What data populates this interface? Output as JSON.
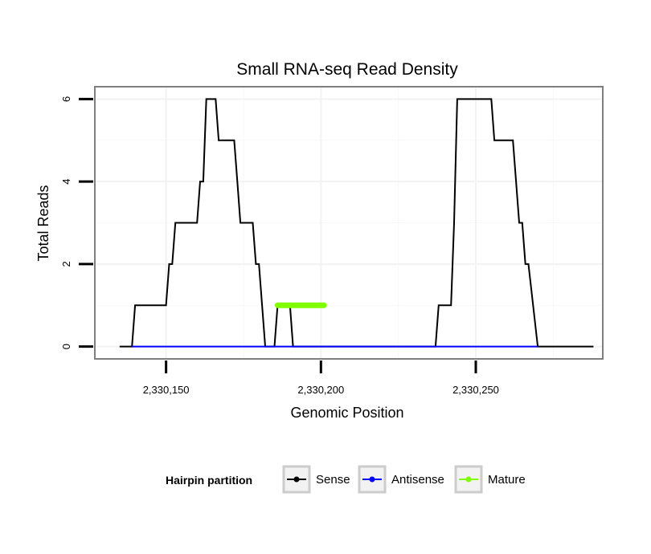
{
  "chart_data": {
    "type": "line",
    "title": "Small RNA-seq Read Density",
    "xlabel": "Genomic Position",
    "ylabel": "Total Reads",
    "xlim": [
      2330127,
      2330291
    ],
    "ylim": [
      -0.3,
      6.3
    ],
    "x_ticks": [
      {
        "value": 2330150,
        "label": "2,330,150"
      },
      {
        "value": 2330200,
        "label": "2,330,200"
      },
      {
        "value": 2330250,
        "label": "2,330,250"
      }
    ],
    "y_ticks": [
      {
        "value": 0,
        "label": "0"
      },
      {
        "value": 2,
        "label": "2"
      },
      {
        "value": 4,
        "label": "4"
      },
      {
        "value": 6,
        "label": "6"
      }
    ],
    "grid": true,
    "legend": {
      "title": "Hairpin partition",
      "position": "bottom",
      "entries": [
        {
          "name": "Sense",
          "color": "#000000"
        },
        {
          "name": "Antisense",
          "color": "#0000ff"
        },
        {
          "name": "Mature",
          "color": "#7fff00"
        }
      ]
    },
    "series": [
      {
        "name": "Sense",
        "color": "#000000",
        "x": [
          2330135,
          2330139,
          2330140,
          2330150,
          2330151,
          2330152,
          2330153,
          2330160,
          2330161,
          2330162,
          2330163,
          2330166,
          2330167,
          2330172,
          2330173,
          2330174,
          2330178,
          2330179,
          2330180,
          2330182,
          2330185,
          2330186,
          2330190,
          2330191,
          2330196,
          2330197,
          2330237,
          2330238,
          2330242,
          2330243,
          2330244,
          2330255,
          2330256,
          2330262,
          2330263,
          2330264,
          2330265,
          2330266,
          2330267,
          2330270,
          2330288
        ],
        "y": [
          0,
          0,
          1,
          1,
          2,
          2,
          3,
          3,
          4,
          4,
          6,
          6,
          5,
          5,
          4,
          3,
          3,
          2,
          2,
          0,
          0,
          1,
          1,
          0,
          0,
          0,
          0,
          1,
          1,
          3,
          6,
          6,
          5,
          5,
          4,
          3,
          3,
          2,
          2,
          0,
          0
        ]
      },
      {
        "name": "Antisense",
        "color": "#0000ff",
        "x": [
          2330139,
          2330182,
          2330238,
          2330270
        ],
        "y": [
          0,
          0,
          0,
          0
        ]
      },
      {
        "name": "Mature",
        "color": "#7fff00",
        "x": [
          2330186,
          2330201
        ],
        "y": [
          1,
          1
        ]
      }
    ]
  }
}
